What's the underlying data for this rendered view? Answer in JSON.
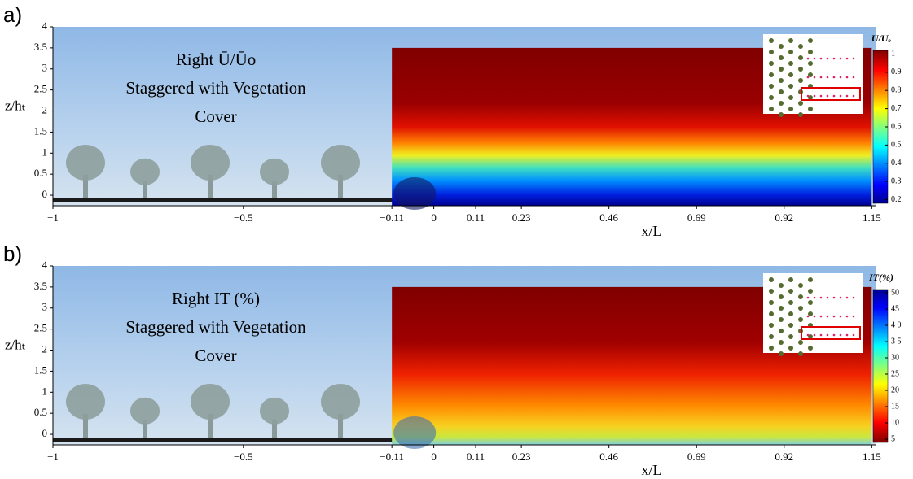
{
  "chart_data": [
    {
      "type": "contour",
      "panel_label": "a)",
      "title_lines": [
        "Right Ū/Ūo",
        "Staggered with Vegetation",
        "Cover"
      ],
      "xlabel": "x/L",
      "ylabel": "z/hₜ",
      "xlim": [
        -1,
        1.16
      ],
      "ylim": [
        -0.25,
        4
      ],
      "xticks": [
        {
          "value": -1,
          "label": "−1"
        },
        {
          "value": -0.5,
          "label": "−0.5"
        },
        {
          "value": -0.11,
          "label": "−0.11"
        },
        0,
        0.11,
        0.23,
        0.46,
        0.69,
        0.92,
        1.15
      ],
      "yticks": [
        0,
        0.5,
        1,
        1.5,
        2,
        2.5,
        3,
        3.5,
        4
      ],
      "colorbar": {
        "title": "U/Uₒ",
        "lim": [
          0.18,
          1.02
        ],
        "ticks": [
          0.2,
          0.3,
          0.4,
          0.5,
          0.6,
          0.7,
          0.8,
          0.9,
          1
        ],
        "colormap": "jet"
      }
    },
    {
      "type": "contour",
      "panel_label": "b)",
      "title_lines": [
        "Right IT (%)",
        "Staggered with Vegetation",
        "Cover"
      ],
      "xlabel": "x/L",
      "ylabel": "z/hₜ",
      "xlim": [
        -1,
        1.16
      ],
      "ylim": [
        -0.25,
        4
      ],
      "xticks": [
        {
          "value": -1,
          "label": "−1"
        },
        {
          "value": -0.5,
          "label": "−0.5"
        },
        {
          "value": -0.11,
          "label": "−0.11"
        },
        0,
        0.11,
        0.23,
        0.46,
        0.69,
        0.92,
        1.15
      ],
      "yticks": [
        0,
        0.5,
        1,
        1.5,
        2,
        2.5,
        3,
        3.5,
        4
      ],
      "colorbar": {
        "title": "IT(%)",
        "lim": [
          4,
          51
        ],
        "ticks": [
          5,
          10,
          15,
          20,
          25,
          30,
          {
            "value": 35,
            "label": "3 5"
          },
          {
            "value": 40,
            "label": "4 0"
          },
          45,
          50
        ],
        "colormap": "jet_r"
      }
    }
  ]
}
